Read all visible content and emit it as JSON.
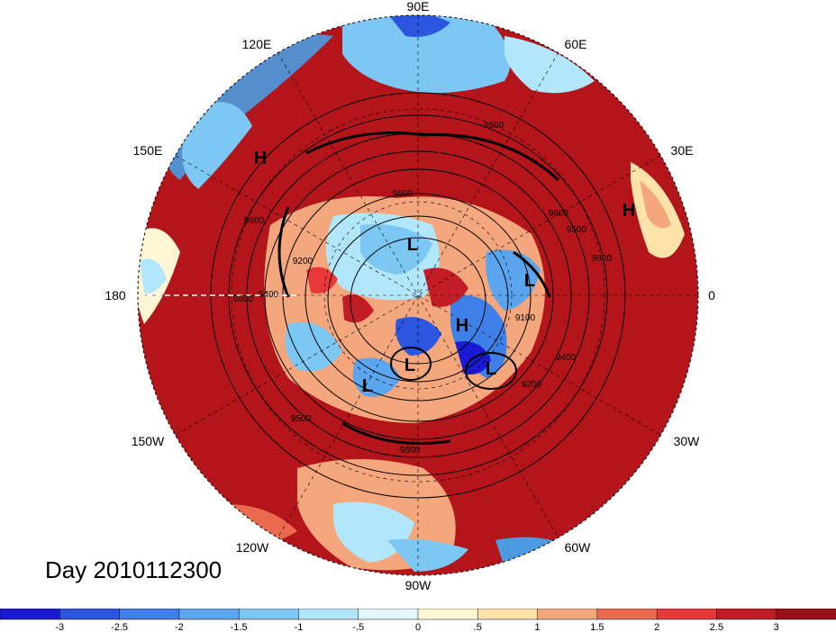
{
  "map": {
    "projection": "polar-stereographic-north",
    "longitude_labels": [
      "90E",
      "60E",
      "30E",
      "0",
      "30W",
      "60W",
      "90W",
      "120W",
      "150W",
      "180",
      "150E",
      "120E"
    ],
    "pressure_centers": [
      {
        "type": "H",
        "label": "H"
      },
      {
        "type": "H",
        "label": "H"
      },
      {
        "type": "H",
        "label": "H"
      },
      {
        "type": "L",
        "label": "L"
      },
      {
        "type": "L",
        "label": "L"
      },
      {
        "type": "L",
        "label": "L"
      },
      {
        "type": "L",
        "label": "L"
      },
      {
        "type": "L",
        "label": "L"
      }
    ],
    "contour_labels": [
      "9600",
      "9600",
      "9600",
      "9600",
      "9600",
      "9500",
      "9500",
      "9400",
      "9400",
      "9200",
      "9200",
      "9100",
      "9600",
      "9600"
    ],
    "colors": {
      "ocean_warm": "#a50f15",
      "warm_mid": "#d7301f",
      "neutral": "#fff7e0",
      "cool_light": "#b7e2f5",
      "cool_mid": "#4a9be0",
      "cool_dark": "#1f2bd6"
    }
  },
  "footer": {
    "day_label": "Day 2010112300"
  },
  "colorbar": {
    "tick_labels": [
      "-3",
      "-2.5",
      "-2",
      "-1.5",
      "-1",
      "-.5",
      "0",
      ".5",
      "1",
      "1.5",
      "2",
      "2.5",
      "3"
    ],
    "colors": [
      "#1a1ad6",
      "#2c55e0",
      "#3f80e8",
      "#5aa5ee",
      "#7cc7f4",
      "#b2e6fb",
      "#e4f6fd",
      "#fff6d6",
      "#fde3a8",
      "#f4a77c",
      "#ea6a50",
      "#e8383a",
      "#c21d26",
      "#9a0f19"
    ]
  }
}
